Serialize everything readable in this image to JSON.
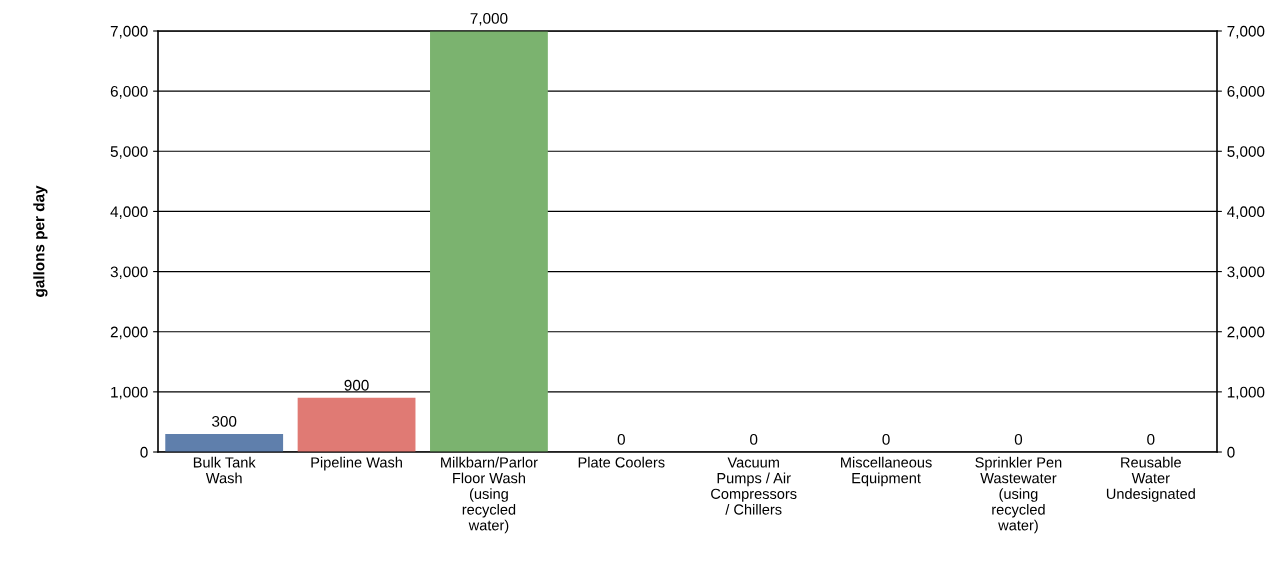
{
  "chart_data": {
    "type": "bar",
    "ylabel": "gallons per day",
    "categories": [
      "Bulk Tank\nWash",
      "Pipeline Wash",
      "Milkbarn/Parlor\nFloor Wash\n(using\nrecycled\nwater)",
      "Plate Coolers",
      "Vacuum\nPumps / Air\nCompressors\n/ Chillers",
      "Miscellaneous\nEquipment",
      "Sprinkler Pen\nWastewater\n(using\nrecycled\nwater)",
      "Reusable\nWater\nUndesignated"
    ],
    "values": [
      300,
      900,
      7000,
      0,
      0,
      0,
      0,
      0
    ],
    "colors": [
      "#5f7fac",
      "#e07a74",
      "#7bb36f",
      "#8064a2",
      "#4bacc6",
      "#f79646",
      "#9bbb59",
      "#c0504d"
    ],
    "value_labels": [
      "300",
      "900",
      "7,000",
      "0",
      "0",
      "0",
      "0",
      "0"
    ],
    "ylim": [
      0,
      7000
    ],
    "yticks": [
      0,
      {
        "value": 1000,
        "label": "1,000"
      },
      {
        "value": 2000,
        "label": "2,000"
      },
      {
        "value": 3000,
        "label": "3,000"
      },
      {
        "value": 4000,
        "label": "4,000"
      },
      {
        "value": 5000,
        "label": "5,000"
      },
      {
        "value": 6000,
        "label": "6,000"
      },
      {
        "value": 7000,
        "label": "7,000"
      }
    ],
    "y2lim": [
      0,
      7000
    ],
    "y2ticks": [
      0,
      {
        "value": 1000,
        "label": "1,000"
      },
      {
        "value": 2000,
        "label": "2,000"
      },
      {
        "value": 3000,
        "label": "3,000"
      },
      {
        "value": 4000,
        "label": "4,000"
      },
      {
        "value": 5000,
        "label": "5,000"
      },
      {
        "value": 6000,
        "label": "6,000"
      },
      {
        "value": 7000,
        "label": "7,000"
      }
    ],
    "grid": "y",
    "legend": false
  }
}
